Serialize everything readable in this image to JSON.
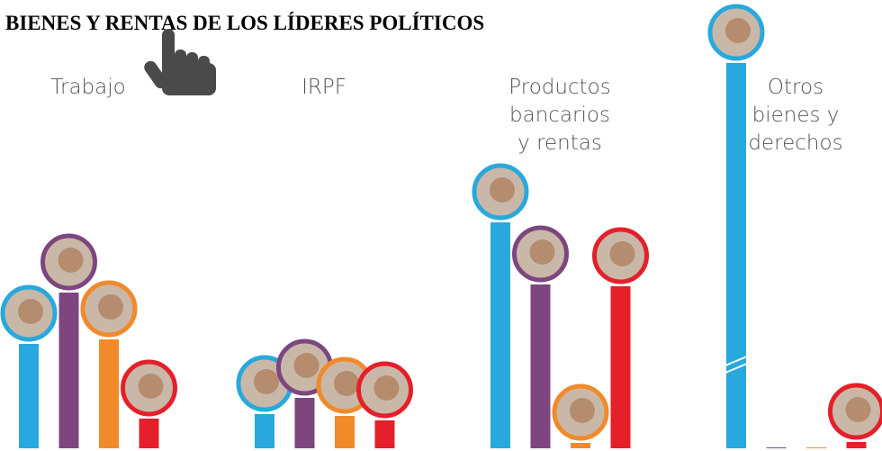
{
  "chart_data": {
    "type": "bar",
    "title": "BIENES Y RENTAS DE LOS LÍDERES POLÍTICOS",
    "categories": [
      [
        "Trabajo"
      ],
      [
        "IRPF"
      ],
      [
        "Productos",
        "bancarios",
        "y rentas"
      ],
      [
        "Otros",
        "bienes y",
        "derechos"
      ]
    ],
    "series": [
      {
        "color": "#29a8dd",
        "values": [
          116,
          38,
          251,
          428
        ]
      },
      {
        "color": "#7d467f",
        "values": [
          173,
          56,
          182,
          1
        ]
      },
      {
        "color": "#f08a2b",
        "values": [
          121,
          36,
          6,
          1
        ]
      },
      {
        "color": "#e4202a",
        "values": [
          33,
          31,
          180,
          7
        ]
      }
    ],
    "ylim": [
      0,
      500
    ]
  }
}
